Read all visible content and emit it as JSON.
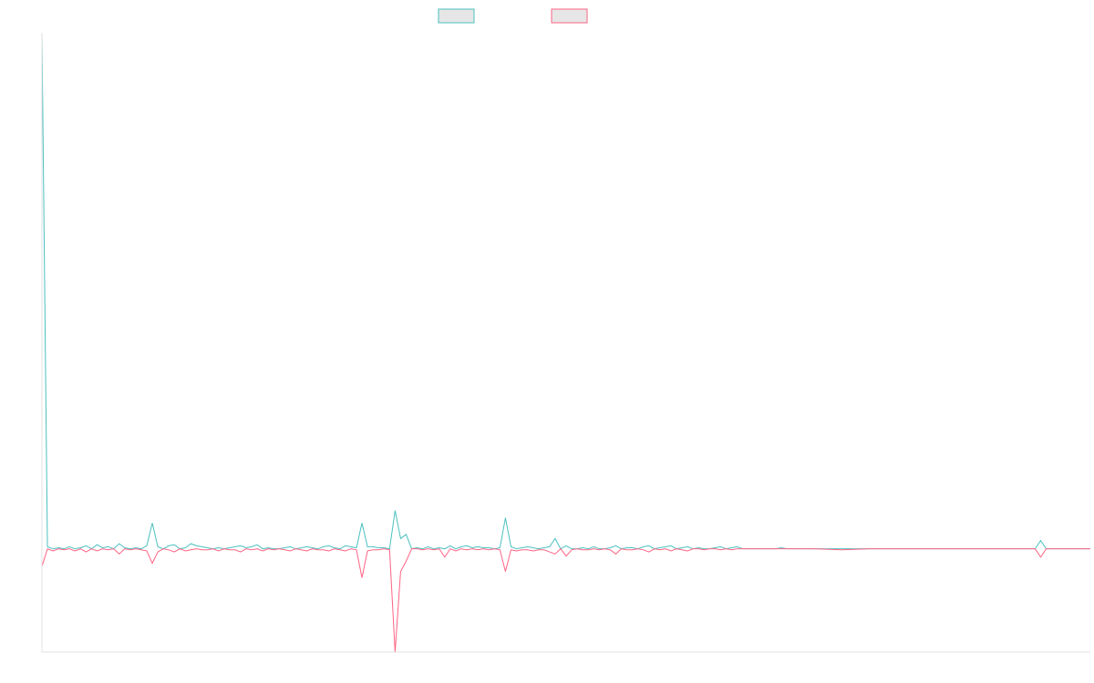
{
  "chart_data": {
    "type": "line",
    "title": "",
    "xlabel": "",
    "ylabel": "",
    "grid": false,
    "legend_placement": "top-center",
    "ylim": [
      -100,
      500
    ],
    "xlim": [
      0,
      190
    ],
    "series": [
      {
        "name": "",
        "color": "#4bc0c0",
        "fill": "#e6e6e6",
        "points": [
          [
            0,
            500
          ],
          [
            1,
            2
          ],
          [
            2,
            0
          ],
          [
            3,
            1
          ],
          [
            4,
            0
          ],
          [
            5,
            2
          ],
          [
            6,
            0
          ],
          [
            7,
            1
          ],
          [
            8,
            3
          ],
          [
            9,
            0
          ],
          [
            10,
            4
          ],
          [
            11,
            1
          ],
          [
            12,
            2
          ],
          [
            13,
            0
          ],
          [
            14,
            5
          ],
          [
            15,
            1
          ],
          [
            16,
            0
          ],
          [
            17,
            1
          ],
          [
            18,
            0
          ],
          [
            19,
            3
          ],
          [
            20,
            25
          ],
          [
            21,
            2
          ],
          [
            22,
            0
          ],
          [
            23,
            3
          ],
          [
            24,
            4
          ],
          [
            25,
            0
          ],
          [
            26,
            1
          ],
          [
            27,
            5
          ],
          [
            28,
            3
          ],
          [
            29,
            2
          ],
          [
            30,
            1
          ],
          [
            31,
            0
          ],
          [
            32,
            1
          ],
          [
            33,
            0
          ],
          [
            34,
            1
          ],
          [
            35,
            2
          ],
          [
            36,
            3
          ],
          [
            37,
            1
          ],
          [
            38,
            2
          ],
          [
            39,
            4
          ],
          [
            40,
            0
          ],
          [
            41,
            1
          ],
          [
            42,
            0
          ],
          [
            43,
            0
          ],
          [
            44,
            1
          ],
          [
            45,
            2
          ],
          [
            46,
            0
          ],
          [
            47,
            1
          ],
          [
            48,
            2
          ],
          [
            49,
            1
          ],
          [
            50,
            0
          ],
          [
            51,
            2
          ],
          [
            52,
            3
          ],
          [
            53,
            1
          ],
          [
            54,
            0
          ],
          [
            55,
            3
          ],
          [
            56,
            2
          ],
          [
            57,
            1
          ],
          [
            58,
            25
          ],
          [
            59,
            2
          ],
          [
            60,
            2
          ],
          [
            61,
            1
          ],
          [
            62,
            1
          ],
          [
            63,
            0
          ],
          [
            64,
            37
          ],
          [
            65,
            10
          ],
          [
            66,
            14
          ],
          [
            67,
            0
          ],
          [
            68,
            1
          ],
          [
            69,
            0
          ],
          [
            70,
            2
          ],
          [
            71,
            0
          ],
          [
            72,
            1
          ],
          [
            73,
            0
          ],
          [
            74,
            3
          ],
          [
            75,
            0
          ],
          [
            76,
            2
          ],
          [
            77,
            3
          ],
          [
            78,
            1
          ],
          [
            79,
            2
          ],
          [
            80,
            1
          ],
          [
            81,
            1
          ],
          [
            82,
            0
          ],
          [
            83,
            1
          ],
          [
            84,
            30
          ],
          [
            85,
            2
          ],
          [
            86,
            0
          ],
          [
            87,
            1
          ],
          [
            88,
            2
          ],
          [
            89,
            1
          ],
          [
            90,
            0
          ],
          [
            91,
            1
          ],
          [
            92,
            2
          ],
          [
            93,
            10
          ],
          [
            94,
            0
          ],
          [
            95,
            3
          ],
          [
            96,
            0
          ],
          [
            97,
            0
          ],
          [
            98,
            1
          ],
          [
            99,
            0
          ],
          [
            100,
            2
          ],
          [
            101,
            0
          ],
          [
            102,
            0
          ],
          [
            103,
            1
          ],
          [
            104,
            3
          ],
          [
            105,
            0
          ],
          [
            106,
            1
          ],
          [
            107,
            1
          ],
          [
            108,
            0
          ],
          [
            109,
            2
          ],
          [
            110,
            3
          ],
          [
            111,
            0
          ],
          [
            112,
            1
          ],
          [
            113,
            2
          ],
          [
            114,
            3
          ],
          [
            115,
            0
          ],
          [
            116,
            1
          ],
          [
            117,
            2
          ],
          [
            118,
            0
          ],
          [
            119,
            1
          ],
          [
            120,
            0
          ],
          [
            121,
            0
          ],
          [
            122,
            1
          ],
          [
            123,
            2
          ],
          [
            124,
            0
          ],
          [
            125,
            1
          ],
          [
            126,
            2
          ],
          [
            127,
            0
          ],
          [
            128,
            0
          ],
          [
            129,
            0
          ],
          [
            130,
            0
          ],
          [
            131,
            0
          ],
          [
            132,
            0
          ],
          [
            133,
            0
          ],
          [
            134,
            1
          ],
          [
            135,
            0
          ],
          [
            140,
            0
          ],
          [
            150,
            0
          ],
          [
            160,
            0
          ],
          [
            170,
            0
          ],
          [
            180,
            0
          ],
          [
            181,
            8
          ],
          [
            182,
            0
          ],
          [
            190,
            0
          ]
        ]
      },
      {
        "name": "",
        "color": "#ff6384",
        "fill": "#e6e6e6",
        "points": [
          [
            0,
            -17
          ],
          [
            1,
            0
          ],
          [
            2,
            -2
          ],
          [
            3,
            0
          ],
          [
            4,
            -1
          ],
          [
            5,
            0
          ],
          [
            6,
            -2
          ],
          [
            7,
            0
          ],
          [
            8,
            -3
          ],
          [
            9,
            0
          ],
          [
            10,
            -2
          ],
          [
            11,
            0
          ],
          [
            12,
            -1
          ],
          [
            13,
            0
          ],
          [
            14,
            -5
          ],
          [
            15,
            0
          ],
          [
            16,
            -1
          ],
          [
            17,
            0
          ],
          [
            18,
            -1
          ],
          [
            19,
            -2
          ],
          [
            20,
            -14
          ],
          [
            21,
            -3
          ],
          [
            22,
            0
          ],
          [
            23,
            -1
          ],
          [
            24,
            -3
          ],
          [
            25,
            0
          ],
          [
            26,
            -2
          ],
          [
            27,
            -1
          ],
          [
            28,
            0
          ],
          [
            29,
            -1
          ],
          [
            30,
            -1
          ],
          [
            31,
            0
          ],
          [
            32,
            -2
          ],
          [
            33,
            0
          ],
          [
            34,
            -1
          ],
          [
            35,
            -1
          ],
          [
            36,
            -3
          ],
          [
            37,
            0
          ],
          [
            38,
            -1
          ],
          [
            39,
            0
          ],
          [
            40,
            -2
          ],
          [
            41,
            0
          ],
          [
            42,
            -1
          ],
          [
            43,
            0
          ],
          [
            44,
            -1
          ],
          [
            45,
            -2
          ],
          [
            46,
            0
          ],
          [
            47,
            -1
          ],
          [
            48,
            -2
          ],
          [
            49,
            0
          ],
          [
            50,
            -1
          ],
          [
            51,
            -1
          ],
          [
            52,
            -2
          ],
          [
            53,
            0
          ],
          [
            54,
            -1
          ],
          [
            55,
            -2
          ],
          [
            56,
            0
          ],
          [
            57,
            -1
          ],
          [
            58,
            -28
          ],
          [
            59,
            -2
          ],
          [
            60,
            -1
          ],
          [
            61,
            -1
          ],
          [
            62,
            0
          ],
          [
            63,
            -1
          ],
          [
            64,
            -100
          ],
          [
            65,
            -22
          ],
          [
            66,
            -12
          ],
          [
            67,
            0
          ],
          [
            68,
            0
          ],
          [
            69,
            -1
          ],
          [
            70,
            0
          ],
          [
            71,
            -1
          ],
          [
            72,
            0
          ],
          [
            73,
            -8
          ],
          [
            74,
            0
          ],
          [
            75,
            -2
          ],
          [
            76,
            0
          ],
          [
            77,
            -1
          ],
          [
            78,
            0
          ],
          [
            79,
            -1
          ],
          [
            80,
            0
          ],
          [
            81,
            -1
          ],
          [
            82,
            0
          ],
          [
            83,
            -1
          ],
          [
            84,
            -22
          ],
          [
            85,
            -1
          ],
          [
            86,
            -2
          ],
          [
            87,
            -1
          ],
          [
            88,
            -1
          ],
          [
            89,
            -2
          ],
          [
            90,
            -1
          ],
          [
            91,
            -1
          ],
          [
            92,
            -3
          ],
          [
            93,
            -5
          ],
          [
            94,
            0
          ],
          [
            95,
            -7
          ],
          [
            96,
            -1
          ],
          [
            97,
            0
          ],
          [
            98,
            -1
          ],
          [
            99,
            -1
          ],
          [
            100,
            0
          ],
          [
            101,
            -1
          ],
          [
            102,
            0
          ],
          [
            103,
            -1
          ],
          [
            104,
            -5
          ],
          [
            105,
            0
          ],
          [
            106,
            -1
          ],
          [
            107,
            -1
          ],
          [
            108,
            0
          ],
          [
            109,
            -1
          ],
          [
            110,
            -3
          ],
          [
            111,
            0
          ],
          [
            112,
            -1
          ],
          [
            113,
            0
          ],
          [
            114,
            -2
          ],
          [
            115,
            0
          ],
          [
            116,
            -1
          ],
          [
            117,
            -2
          ],
          [
            118,
            0
          ],
          [
            119,
            0
          ],
          [
            120,
            -1
          ],
          [
            121,
            0
          ],
          [
            122,
            0
          ],
          [
            123,
            -1
          ],
          [
            124,
            0
          ],
          [
            125,
            -1
          ],
          [
            126,
            0
          ],
          [
            127,
            0
          ],
          [
            128,
            0
          ],
          [
            135,
            0
          ],
          [
            140,
            0
          ],
          [
            145,
            -1
          ],
          [
            150,
            0
          ],
          [
            160,
            0
          ],
          [
            170,
            0
          ],
          [
            180,
            0
          ],
          [
            181,
            -8
          ],
          [
            182,
            0
          ],
          [
            190,
            0
          ]
        ]
      }
    ]
  }
}
